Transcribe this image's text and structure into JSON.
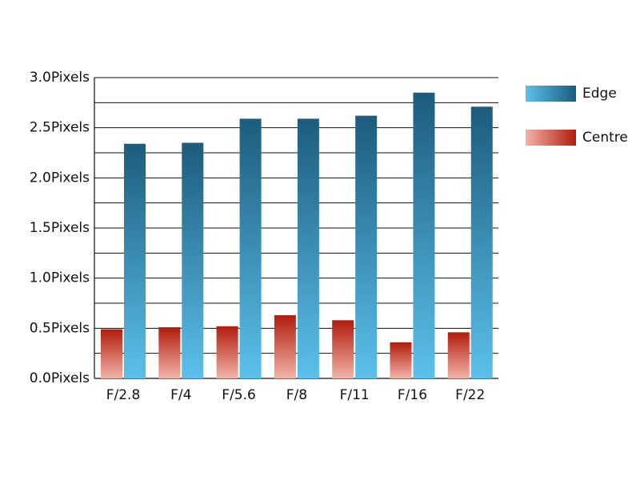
{
  "chart_data": {
    "type": "bar",
    "categories": [
      "F/2.8",
      "F/4",
      "F/5.6",
      "F/8",
      "F/11",
      "F/16",
      "F/22"
    ],
    "series": [
      {
        "name": "Edge",
        "color": "#1c5c7c",
        "color_light": "#5cc0ec",
        "values": [
          2.34,
          2.35,
          2.59,
          2.59,
          2.62,
          2.85,
          2.71
        ]
      },
      {
        "name": "Centre",
        "color": "#b01c0c",
        "color_light": "#f2b4a8",
        "values": [
          0.49,
          0.51,
          0.52,
          0.63,
          0.58,
          0.36,
          0.46
        ]
      }
    ],
    "ylim": [
      0,
      3
    ],
    "yticks": [
      {
        "value": 0,
        "label": "0.0Pixels"
      },
      {
        "value": 0.5,
        "label": "0.5Pixels"
      },
      {
        "value": 1,
        "label": "1.0Pixels"
      },
      {
        "value": 1.5,
        "label": "1.5Pixels"
      },
      {
        "value": 2,
        "label": "2.0Pixels"
      },
      {
        "value": 2.5,
        "label": "2.5Pixels"
      },
      {
        "value": 3,
        "label": "3.0Pixels"
      }
    ],
    "yminorticks": [
      0.25,
      0.75,
      1.25,
      1.75,
      2.25,
      2.75
    ],
    "grid": true,
    "legend": "right"
  }
}
